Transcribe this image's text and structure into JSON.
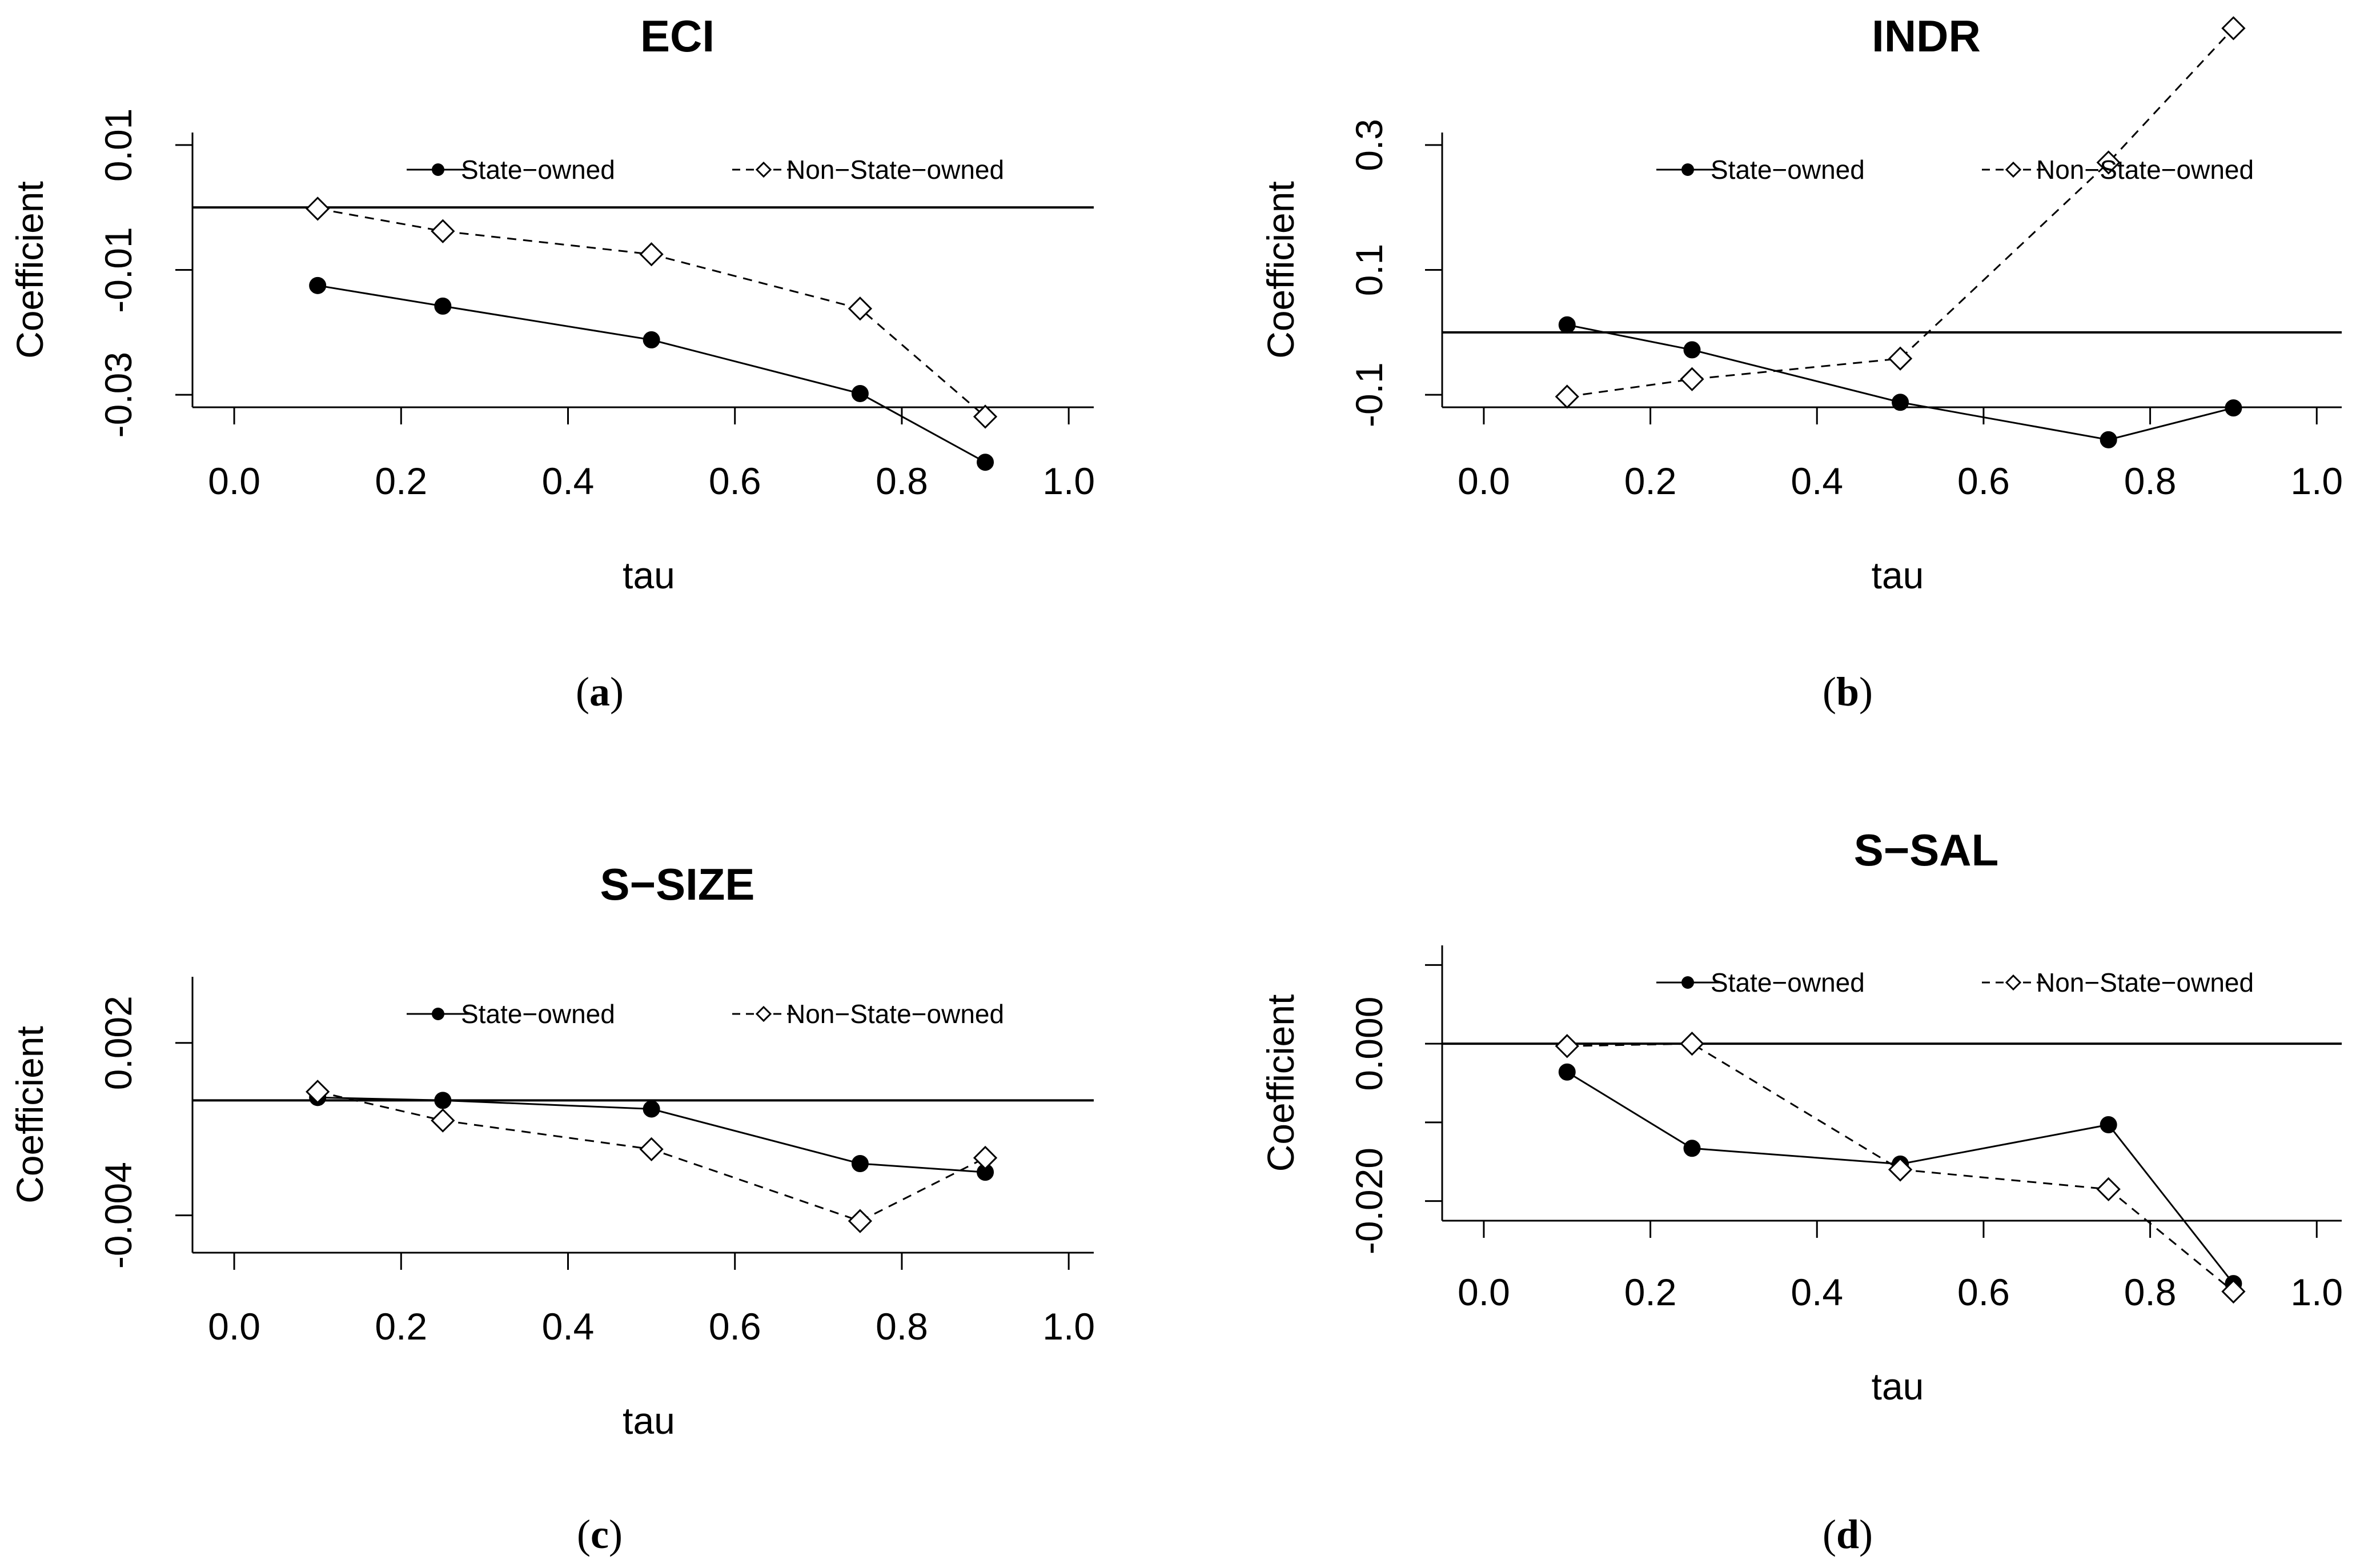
{
  "chart_data": [
    {
      "type": "line",
      "title": "ECI",
      "xlabel": "tau",
      "ylabel": "Coefficient",
      "caption_letter": "a",
      "xlim": [
        -0.05,
        1.03
      ],
      "ylim": [
        -0.032,
        0.012
      ],
      "xticks": [
        "0.0",
        "0.2",
        "0.4",
        "0.6",
        "0.8",
        "1.0"
      ],
      "xtick_values": [
        0,
        0.2,
        0.4,
        0.6,
        0.8,
        1.0
      ],
      "yticks": [
        "-0.03",
        "-0.01",
        "0.01"
      ],
      "ytick_values": [
        -0.03,
        -0.01,
        0.01
      ],
      "hline": 0,
      "x": [
        0.1,
        0.25,
        0.5,
        0.75,
        0.9
      ],
      "legend_position": "top",
      "series": [
        {
          "name": "State−owned",
          "marker": "filled-circle",
          "line": "solid",
          "values": [
            -0.0125,
            -0.0158,
            -0.0212,
            -0.0298,
            -0.0408
          ]
        },
        {
          "name": "Non−State−owned",
          "marker": "open-diamond",
          "line": "dashed",
          "values": [
            -0.0002,
            -0.0038,
            -0.0075,
            -0.0162,
            -0.0335
          ]
        }
      ]
    },
    {
      "type": "line",
      "title": "INDR",
      "xlabel": "tau",
      "ylabel": "Coefficient",
      "caption_letter": "b",
      "xlim": [
        -0.05,
        1.03
      ],
      "ylim": [
        -0.12,
        0.32
      ],
      "xticks": [
        "0.0",
        "0.2",
        "0.4",
        "0.6",
        "0.8",
        "1.0"
      ],
      "xtick_values": [
        0,
        0.2,
        0.4,
        0.6,
        0.8,
        1.0
      ],
      "yticks": [
        "-0.1",
        "0.1",
        "0.3"
      ],
      "ytick_values": [
        -0.1,
        0.1,
        0.3
      ],
      "hline": 0,
      "x": [
        0.1,
        0.25,
        0.5,
        0.75,
        0.9
      ],
      "legend_position": "top",
      "series": [
        {
          "name": "State−owned",
          "marker": "filled-circle",
          "line": "solid",
          "values": [
            0.012,
            -0.028,
            -0.112,
            -0.172,
            -0.121
          ]
        },
        {
          "name": "Non−State−owned",
          "marker": "open-diamond",
          "line": "dashed",
          "values": [
            -0.103,
            -0.075,
            -0.042,
            0.272,
            0.487
          ]
        }
      ]
    },
    {
      "type": "line",
      "title": "S−SIZE",
      "xlabel": "tau",
      "ylabel": "Coefficient",
      "caption_letter": "c",
      "xlim": [
        -0.05,
        1.03
      ],
      "ylim": [
        -0.0053,
        0.0043
      ],
      "xticks": [
        "0.0",
        "0.2",
        "0.4",
        "0.6",
        "0.8",
        "1.0"
      ],
      "xtick_values": [
        0,
        0.2,
        0.4,
        0.6,
        0.8,
        1.0
      ],
      "yticks": [
        "-0.004",
        "0.002"
      ],
      "ytick_values": [
        -0.004,
        0.002
      ],
      "hline": 0,
      "x": [
        0.1,
        0.25,
        0.5,
        0.75,
        0.9
      ],
      "legend_position": "top",
      "series": [
        {
          "name": "State−owned",
          "marker": "filled-circle",
          "line": "solid",
          "values": [
            0.0001,
            0.0,
            -0.0003,
            -0.0022,
            -0.0025
          ]
        },
        {
          "name": "Non−State−owned",
          "marker": "open-diamond",
          "line": "dashed",
          "values": [
            0.0003,
            -0.0007,
            -0.0017,
            -0.0042,
            -0.002
          ]
        }
      ]
    },
    {
      "type": "line",
      "title": "S−SAL",
      "xlabel": "tau",
      "ylabel": "Coefficient",
      "caption_letter": "d",
      "xlim": [
        -0.05,
        1.03
      ],
      "ylim": [
        -0.0225,
        0.0125
      ],
      "xticks": [
        "0.0",
        "0.2",
        "0.4",
        "0.6",
        "0.8",
        "1.0"
      ],
      "xtick_values": [
        0,
        0.2,
        0.4,
        0.6,
        0.8,
        1.0
      ],
      "yticks": [
        "-0.020",
        "0.000"
      ],
      "ytick_values": [
        -0.02,
        0.0
      ],
      "minor_ytick_values": [
        -0.01,
        0.01
      ],
      "hline": 0,
      "x": [
        0.1,
        0.25,
        0.5,
        0.75,
        0.9
      ],
      "legend_position": "top",
      "series": [
        {
          "name": "State−owned",
          "marker": "filled-circle",
          "line": "solid",
          "values": [
            -0.0036,
            -0.0133,
            -0.0153,
            -0.0103,
            -0.0305
          ]
        },
        {
          "name": "Non−State−owned",
          "marker": "open-diamond",
          "line": "dashed",
          "values": [
            -0.0003,
            0.0,
            -0.016,
            -0.0185,
            -0.0315
          ]
        }
      ]
    }
  ]
}
